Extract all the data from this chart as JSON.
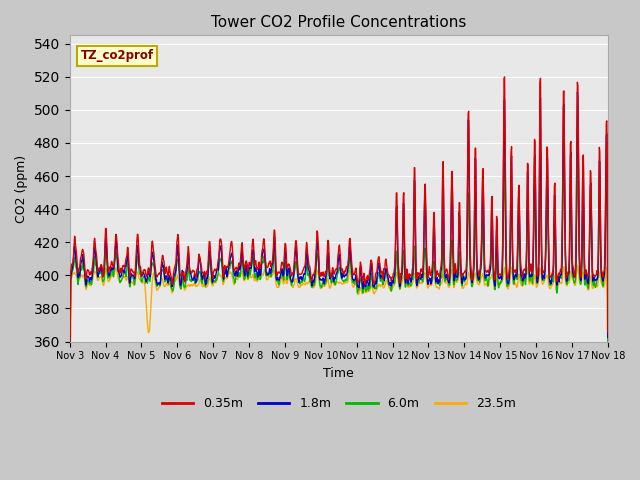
{
  "title": "Tower CO2 Profile Concentrations",
  "ylabel": "CO2 (ppm)",
  "xlabel": "Time",
  "legend_label": "TZ_co2prof",
  "series_labels": [
    "0.35m",
    "1.8m",
    "6.0m",
    "23.5m"
  ],
  "series_colors": [
    "#dd0000",
    "#0000cc",
    "#00bb00",
    "#ffaa00"
  ],
  "ylim": [
    360,
    545
  ],
  "yticks": [
    360,
    380,
    400,
    420,
    440,
    460,
    480,
    500,
    520,
    540
  ],
  "xtick_labels": [
    "Nov 3",
    "Nov 4",
    "Nov 5",
    "Nov 6",
    "Nov 7",
    "Nov 8",
    "Nov 9",
    "Nov 10",
    "Nov 11",
    "Nov 12",
    "Nov 13",
    "Nov 14",
    "Nov 15",
    "Nov 16",
    "Nov 17",
    "Nov 18"
  ],
  "plot_bg_color": "#e8e8e8",
  "fig_bg_color": "#c8c8c8",
  "line_width": 1.0,
  "grid_color": "#ffffff",
  "annotation_bg": "#ffffcc",
  "annotation_border": "#bbaa00"
}
